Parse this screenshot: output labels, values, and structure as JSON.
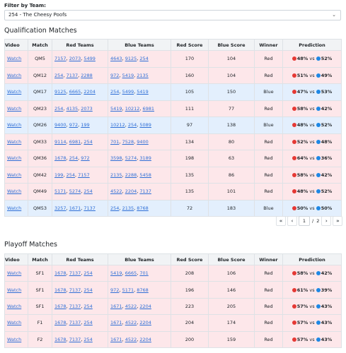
{
  "filter": {
    "label": "Filter by Team:",
    "selected": "254 - The Cheesy Poofs",
    "caret": "⌄"
  },
  "qual": {
    "title": "Qualification Matches",
    "headers": [
      "Video",
      "Match",
      "Red Teams",
      "Blue Teams",
      "Red Score",
      "Blue Score",
      "Winner",
      "Prediction"
    ],
    "rows": [
      {
        "video": "Watch",
        "match": "QM5",
        "red": [
          "7157",
          "2073",
          "5499"
        ],
        "blue": [
          "4643",
          "9125",
          "254"
        ],
        "rs": "170",
        "bs": "104",
        "winner": "Red",
        "pr": "48%",
        "pb": "52%"
      },
      {
        "video": "Watch",
        "match": "QM12",
        "red": [
          "254",
          "7137",
          "2288"
        ],
        "blue": [
          "972",
          "5419",
          "2135"
        ],
        "rs": "160",
        "bs": "104",
        "winner": "Red",
        "pr": "51%",
        "pb": "49%"
      },
      {
        "video": "Watch",
        "match": "QM17",
        "red": [
          "9125",
          "6665",
          "2204"
        ],
        "blue": [
          "254",
          "5499",
          "5419"
        ],
        "rs": "105",
        "bs": "150",
        "winner": "Blue",
        "pr": "47%",
        "pb": "53%"
      },
      {
        "video": "Watch",
        "match": "QM23",
        "red": [
          "254",
          "4135",
          "2073"
        ],
        "blue": [
          "5419",
          "10212",
          "6981"
        ],
        "rs": "111",
        "bs": "77",
        "winner": "Red",
        "pr": "58%",
        "pb": "42%"
      },
      {
        "video": "Watch",
        "match": "QM26",
        "red": [
          "9400",
          "972",
          "199"
        ],
        "blue": [
          "10212",
          "254",
          "5089"
        ],
        "rs": "97",
        "bs": "138",
        "winner": "Blue",
        "pr": "48%",
        "pb": "52%"
      },
      {
        "video": "Watch",
        "match": "QM33",
        "red": [
          "9114",
          "6981",
          "254"
        ],
        "blue": [
          "701",
          "7528",
          "9400"
        ],
        "rs": "134",
        "bs": "80",
        "winner": "Red",
        "pr": "52%",
        "pb": "48%"
      },
      {
        "video": "Watch",
        "match": "QM36",
        "red": [
          "1678",
          "254",
          "972"
        ],
        "blue": [
          "3598",
          "5274",
          "3189"
        ],
        "rs": "198",
        "bs": "63",
        "winner": "Red",
        "pr": "64%",
        "pb": "36%"
      },
      {
        "video": "Watch",
        "match": "QM42",
        "red": [
          "199",
          "254",
          "7157"
        ],
        "blue": [
          "2135",
          "2288",
          "5458"
        ],
        "rs": "135",
        "bs": "86",
        "winner": "Red",
        "pr": "58%",
        "pb": "42%"
      },
      {
        "video": "Watch",
        "match": "QM49",
        "red": [
          "5171",
          "5274",
          "254"
        ],
        "blue": [
          "4522",
          "2204",
          "7137"
        ],
        "rs": "135",
        "bs": "101",
        "winner": "Red",
        "pr": "48%",
        "pb": "52%"
      },
      {
        "video": "Watch",
        "match": "QM53",
        "red": [
          "3257",
          "1671",
          "7137"
        ],
        "blue": [
          "254",
          "2135",
          "8768"
        ],
        "rs": "72",
        "bs": "183",
        "winner": "Blue",
        "pr": "50%",
        "pb": "50%"
      }
    ],
    "pager": {
      "first": "«",
      "prev": "‹",
      "page": "1",
      "sep": "/",
      "total": "2",
      "next": "›",
      "last": "»"
    }
  },
  "playoff": {
    "title": "Playoff Matches",
    "headers": [
      "Video",
      "Match",
      "Red Teams",
      "Blue Teams",
      "Red Score",
      "Blue Score",
      "Winner",
      "Prediction"
    ],
    "rows": [
      {
        "video": "Watch",
        "match": "SF1",
        "red": [
          "1678",
          "7137",
          "254"
        ],
        "blue": [
          "5419",
          "6665",
          "701"
        ],
        "rs": "208",
        "bs": "106",
        "winner": "Red",
        "pr": "58%",
        "pb": "42%"
      },
      {
        "video": "Watch",
        "match": "SF1",
        "red": [
          "1678",
          "7137",
          "254"
        ],
        "blue": [
          "972",
          "5171",
          "8768"
        ],
        "rs": "196",
        "bs": "146",
        "winner": "Red",
        "pr": "61%",
        "pb": "39%"
      },
      {
        "video": "Watch",
        "match": "SF1",
        "red": [
          "1678",
          "7137",
          "254"
        ],
        "blue": [
          "1671",
          "4522",
          "2204"
        ],
        "rs": "223",
        "bs": "205",
        "winner": "Red",
        "pr": "57%",
        "pb": "43%"
      },
      {
        "video": "Watch",
        "match": "F1",
        "red": [
          "1678",
          "7137",
          "254"
        ],
        "blue": [
          "1671",
          "4522",
          "2204"
        ],
        "rs": "204",
        "bs": "174",
        "winner": "Red",
        "pr": "57%",
        "pb": "43%"
      },
      {
        "video": "Watch",
        "match": "F2",
        "red": [
          "1678",
          "7137",
          "254"
        ],
        "blue": [
          "1671",
          "4522",
          "2204"
        ],
        "rs": "200",
        "bs": "159",
        "winner": "Red",
        "pr": "57%",
        "pb": "43%"
      }
    ]
  },
  "vs_word": "vs",
  "colors": {
    "red_row": "#fde7ea",
    "blue_row": "#e3effd",
    "red_dot": "#e53935",
    "blue_dot": "#1e88e5",
    "link": "#2f6fd6"
  }
}
